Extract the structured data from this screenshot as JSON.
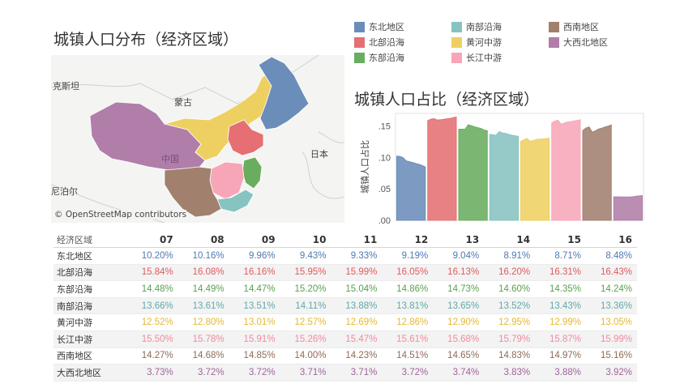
{
  "map": {
    "title": "城镇人口分布（经济区域）",
    "labels": {
      "kazakhstan": "克斯坦",
      "mongolia": "蒙古",
      "china": "中国",
      "japan": "日本",
      "nepal": "尼泊尔"
    },
    "credit": "© OpenStreetMap contributors"
  },
  "legend": [
    {
      "label": "东北地区",
      "color": "#6b8db9"
    },
    {
      "label": "南部沿海",
      "color": "#86c3c1"
    },
    {
      "label": "西南地区",
      "color": "#a1806e"
    },
    {
      "label": "北部沿海",
      "color": "#e56f73"
    },
    {
      "label": "黄河中游",
      "color": "#eed062"
    },
    {
      "label": "大西北地区",
      "color": "#b07ea9"
    },
    {
      "label": "东部沿海",
      "color": "#69ad5f"
    },
    {
      "label": "长江中游",
      "color": "#f7a6b7"
    }
  ],
  "chart_data": {
    "type": "area",
    "title": "城镇人口占比（经济区域）",
    "ylabel": "城镇人口占比",
    "ylim": [
      0.0,
      0.17
    ],
    "yticks": [
      ".00",
      ".05",
      ".10",
      ".15"
    ],
    "series": [
      {
        "name": "东北地区",
        "color": "#6b8db9",
        "values": [
          0.102,
          0.1016,
          0.0996,
          0.0943,
          0.0933,
          0.0919,
          0.0904,
          0.0891,
          0.0871,
          0.0848
        ]
      },
      {
        "name": "北部沿海",
        "color": "#e56f73",
        "values": [
          0.1584,
          0.1608,
          0.1616,
          0.1595,
          0.1599,
          0.1605,
          0.1613,
          0.162,
          0.1631,
          0.1643
        ]
      },
      {
        "name": "东部沿海",
        "color": "#69ad5f",
        "values": [
          0.1448,
          0.1449,
          0.1447,
          0.152,
          0.1504,
          0.1486,
          0.1473,
          0.146,
          0.1435,
          0.1424
        ]
      },
      {
        "name": "南部沿海",
        "color": "#86c3c1",
        "values": [
          0.1366,
          0.1361,
          0.1351,
          0.1411,
          0.1388,
          0.1381,
          0.1365,
          0.1352,
          0.1343,
          0.1336
        ]
      },
      {
        "name": "黄河中游",
        "color": "#eed062",
        "values": [
          0.1252,
          0.128,
          0.1301,
          0.1257,
          0.1269,
          0.1286,
          0.129,
          0.1295,
          0.1299,
          0.1305
        ]
      },
      {
        "name": "长江中游",
        "color": "#f7a6b7",
        "values": [
          0.155,
          0.1578,
          0.1591,
          0.1526,
          0.1547,
          0.1561,
          0.1568,
          0.1579,
          0.1587,
          0.1599
        ]
      },
      {
        "name": "西南地区",
        "color": "#a1806e",
        "values": [
          0.1427,
          0.1468,
          0.1485,
          0.14,
          0.1423,
          0.1451,
          0.1465,
          0.1483,
          0.1497,
          0.1516
        ]
      },
      {
        "name": "大西北地区",
        "color": "#b07ea9",
        "values": [
          0.0373,
          0.0372,
          0.0372,
          0.0371,
          0.0371,
          0.0372,
          0.0374,
          0.0383,
          0.0388,
          0.0392
        ]
      }
    ]
  },
  "table": {
    "corner_label": "经济区域",
    "years": [
      "07",
      "08",
      "09",
      "10",
      "11",
      "12",
      "13",
      "14",
      "15",
      "16"
    ],
    "rows": [
      {
        "region": "东北地区",
        "color": "#4f79b0",
        "values": [
          "10.20%",
          "10.16%",
          "9.96%",
          "9.43%",
          "9.33%",
          "9.19%",
          "9.04%",
          "8.91%",
          "8.71%",
          "8.48%"
        ]
      },
      {
        "region": "北部沿海",
        "color": "#e05a5e",
        "values": [
          "15.84%",
          "16.08%",
          "16.16%",
          "15.95%",
          "15.99%",
          "16.05%",
          "16.13%",
          "16.20%",
          "16.31%",
          "16.43%"
        ]
      },
      {
        "region": "东部沿海",
        "color": "#5aa14e",
        "values": [
          "14.48%",
          "14.49%",
          "14.47%",
          "15.20%",
          "15.04%",
          "14.86%",
          "14.73%",
          "14.60%",
          "14.35%",
          "14.24%"
        ]
      },
      {
        "region": "南部沿海",
        "color": "#5eaaa8",
        "values": [
          "13.66%",
          "13.61%",
          "13.51%",
          "14.11%",
          "13.88%",
          "13.81%",
          "13.65%",
          "13.52%",
          "13.43%",
          "13.36%"
        ]
      },
      {
        "region": "黄河中游",
        "color": "#e5b82f",
        "values": [
          "12.52%",
          "12.80%",
          "13.01%",
          "12.57%",
          "12.69%",
          "12.86%",
          "12.90%",
          "12.95%",
          "12.99%",
          "13.05%"
        ]
      },
      {
        "region": "长江中游",
        "color": "#f28a9f",
        "values": [
          "15.50%",
          "15.78%",
          "15.91%",
          "15.26%",
          "15.47%",
          "15.61%",
          "15.68%",
          "15.79%",
          "15.87%",
          "15.99%"
        ]
      },
      {
        "region": "西南地区",
        "color": "#8d6b58",
        "values": [
          "14.27%",
          "14.68%",
          "14.85%",
          "14.00%",
          "14.23%",
          "14.51%",
          "14.65%",
          "14.83%",
          "14.97%",
          "15.16%"
        ]
      },
      {
        "region": "大西北地区",
        "color": "#a0639a",
        "values": [
          "3.73%",
          "3.72%",
          "3.72%",
          "3.71%",
          "3.71%",
          "3.72%",
          "3.74%",
          "3.83%",
          "3.88%",
          "3.92%"
        ]
      }
    ]
  }
}
